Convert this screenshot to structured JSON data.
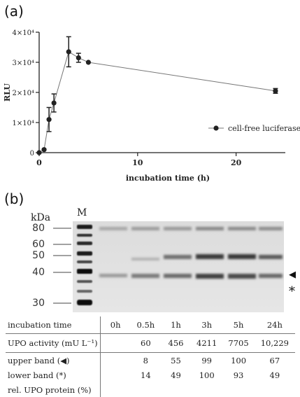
{
  "panel_a_label": "(a)",
  "panel_b_label": "(b)",
  "chart_data": {
    "type": "line",
    "xlabel": "incubation time (h)",
    "ylabel": "RLU",
    "xlim": [
      0,
      25
    ],
    "ylim": [
      0,
      40000
    ],
    "x_ticks": [
      0,
      10,
      20
    ],
    "y_ticks": [
      {
        "value": 0,
        "label": "0"
      },
      {
        "value": 10000,
        "label": "1×10⁴"
      },
      {
        "value": 20000,
        "label": "2×10⁴"
      },
      {
        "value": 30000,
        "label": "3×10⁴"
      },
      {
        "value": 40000,
        "label": "4×10⁴"
      }
    ],
    "grid": false,
    "legend_position": "right",
    "series": [
      {
        "name": "cell-free luciferase",
        "color": "#222222",
        "points": [
          {
            "x": 0,
            "y": 0,
            "err": 0
          },
          {
            "x": 0.5,
            "y": 1000,
            "err": 0
          },
          {
            "x": 1,
            "y": 11000,
            "err": 4000
          },
          {
            "x": 1.5,
            "y": 16500,
            "err": 3000
          },
          {
            "x": 3,
            "y": 33500,
            "err": 5000
          },
          {
            "x": 4,
            "y": 31500,
            "err": 1500
          },
          {
            "x": 5,
            "y": 30000,
            "err": 0
          },
          {
            "x": 24,
            "y": 20500,
            "err": 800
          }
        ]
      }
    ]
  },
  "gel": {
    "kda_label": "kDa",
    "marker_label": "M",
    "mw_markers": [
      "80",
      "60",
      "50",
      "40",
      "30"
    ],
    "upper_band_symbol": "◀",
    "lower_band_symbol": "*"
  },
  "table": {
    "header": [
      "incubation time",
      "0h",
      "0.5h",
      "1h",
      "3h",
      "5h",
      "24h"
    ],
    "upo_activity": [
      "UPO activity (mU L⁻¹)",
      "",
      "60",
      "456",
      "4211",
      "7705",
      "10,229"
    ],
    "upper_band": [
      "upper band (◀)",
      "",
      "8",
      "55",
      "99",
      "100",
      "67"
    ],
    "lower_band": [
      "lower band (*)",
      "",
      "14",
      "49",
      "100",
      "93",
      "49"
    ],
    "rel_upo": [
      "rel. UPO protein (%)",
      "",
      "",
      "",
      "",
      "",
      ""
    ]
  }
}
